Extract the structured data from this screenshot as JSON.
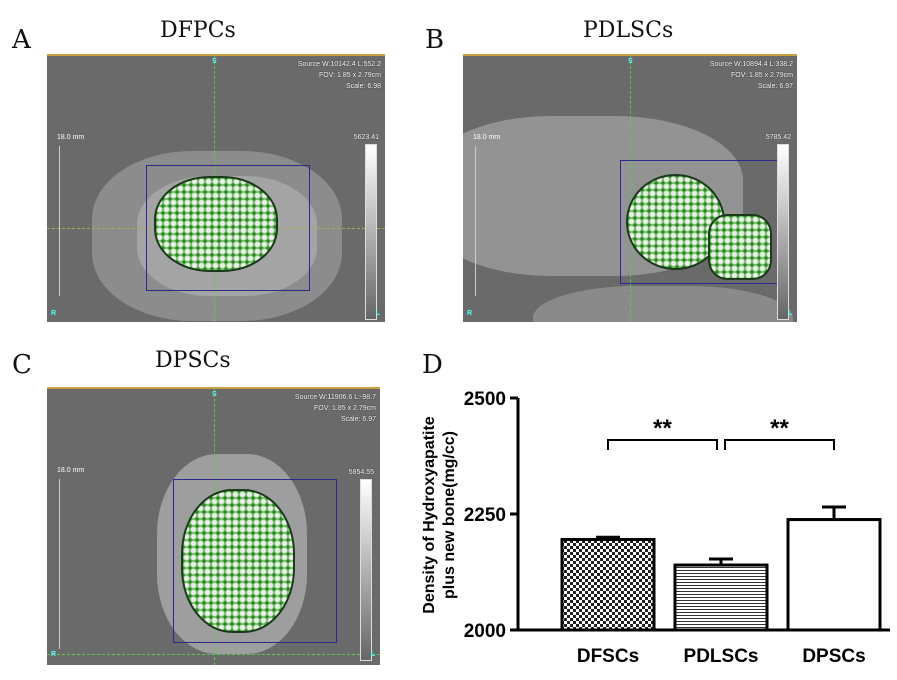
{
  "panels": [
    {
      "letter": "A",
      "title": "DFPCs",
      "source": "Source W:10142.4 L:552.2",
      "fov": "FOV: 1.85 x 2.79cm",
      "scale": "Scale: 6.98",
      "max": "5623.41",
      "ruler": "18.0 mm",
      "s": "S",
      "r": "R",
      "l": "L"
    },
    {
      "letter": "B",
      "title": "PDLSCs",
      "source": "Source W:10894.4 L:338.2",
      "fov": "FOV: 1.85 x 2.79cm",
      "scale": "Scale: 6.97",
      "max": "5785.42",
      "ruler": "18.0 mm",
      "s": "S",
      "r": "R",
      "l": "L"
    },
    {
      "letter": "C",
      "title": "DPSCs",
      "source": "Source W:11906.6 L:-98.7",
      "fov": "FOV: 1.85 x 2.79cm",
      "scale": "Scale: 6.97",
      "max": "5854.55",
      "ruler": "18.0 mm",
      "s": "S",
      "r": "R",
      "l": "L"
    }
  ],
  "chart_data": {
    "letter": "D",
    "type": "bar",
    "categories": [
      "DFSCs",
      "PDLSCs",
      "DPSCs"
    ],
    "values": [
      2195,
      2140,
      2238
    ],
    "errors": [
      5,
      13,
      27
    ],
    "ylabel_line1": "Density of Hydroxyapatite",
    "ylabel_line2": "plus new bone(mg/cc)",
    "ylim": [
      2000,
      2500
    ],
    "yticks": [
      "2000",
      "2250",
      "2500"
    ],
    "significance": [
      {
        "from": 0,
        "to": 1,
        "label": "**"
      },
      {
        "from": 1,
        "to": 2,
        "label": "**"
      }
    ],
    "fills": [
      "checker",
      "horizontal-lines",
      "white"
    ]
  }
}
